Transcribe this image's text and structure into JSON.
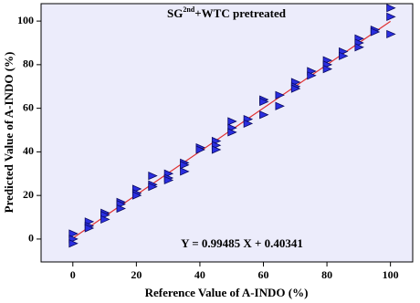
{
  "chart_data": {
    "type": "scatter",
    "title": {
      "base": "SG",
      "sup": "2nd",
      "rest": "+WTC pretreated"
    },
    "x_label": "Reference Value of A-INDO (%)",
    "y_label": "Predicted Value of A-INDO (%)",
    "x": [
      0,
      0,
      0,
      5,
      5,
      5,
      10,
      10,
      10,
      15,
      15,
      15,
      20,
      20,
      20,
      25,
      25,
      25,
      30,
      30,
      30,
      35,
      35,
      35,
      40,
      40,
      45,
      45,
      45,
      50,
      50,
      50,
      55,
      55,
      60,
      60,
      60,
      65,
      65,
      70,
      70,
      70,
      75,
      75,
      80,
      80,
      80,
      85,
      85,
      90,
      90,
      90,
      95,
      95,
      100,
      100,
      100
    ],
    "series": [
      {
        "color": "#2a2ee0",
        "values": [
          2.5,
          0,
          -2,
          8,
          6,
          5,
          12,
          11,
          9,
          17,
          16,
          14,
          23,
          21,
          20,
          29,
          25,
          24,
          30,
          28,
          27,
          35,
          34,
          31,
          42,
          41,
          45,
          43,
          41,
          54,
          51,
          49,
          55,
          53,
          64,
          63,
          57,
          66,
          61,
          72,
          70,
          69,
          77,
          75,
          82,
          80,
          78,
          86,
          84,
          92,
          90,
          88,
          96,
          95,
          106,
          102,
          94
        ]
      }
    ],
    "fit": {
      "slope": 0.99485,
      "intercept": 0.40341,
      "color": "#e03030",
      "label": "Y = 0.99485 X + 0.40341"
    },
    "xlim": [
      -10,
      107
    ],
    "ylim": [
      -10.5,
      108
    ],
    "xticks": [
      0,
      20,
      40,
      60,
      80,
      100
    ],
    "yticks": [
      0,
      20,
      40,
      60,
      80,
      100
    ]
  }
}
